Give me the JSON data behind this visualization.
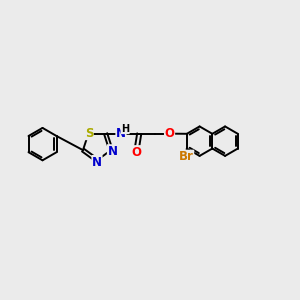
{
  "bg_color": "#ebebeb",
  "bond_color": "#000000",
  "S_color": "#aaaa00",
  "N_color": "#0000cc",
  "O_color": "#ff0000",
  "Br_color": "#cc7700",
  "line_width": 1.4,
  "font_size": 8.5,
  "fig_size": [
    3.0,
    3.0
  ],
  "dpi": 100,
  "xlim": [
    0,
    10
  ],
  "ylim": [
    0,
    10
  ]
}
